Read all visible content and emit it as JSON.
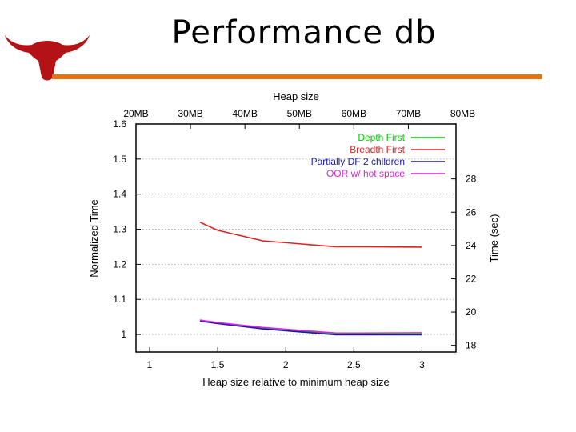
{
  "slide": {
    "title": "Performance db",
    "accent_color": "#e8720c",
    "logo_icon": "longhorn-logo-icon",
    "logo_color": "#b31217"
  },
  "chart_data": {
    "type": "line",
    "xlabel": "Heap size relative to minimum heap size",
    "ylabel": "Normalized Time",
    "y2label": "Time (sec)",
    "x2label": "Heap size",
    "xlim": [
      0.9,
      3.25
    ],
    "ylim": [
      0.95,
      1.6
    ],
    "y2lim": [
      17.6,
      31.3
    ],
    "xticks": [
      1,
      1.5,
      2,
      2.5,
      3
    ],
    "xtick_labels": [
      "1",
      "1.5",
      "2",
      "2.5",
      "3"
    ],
    "yticks": [
      1,
      1.1,
      1.2,
      1.3,
      1.4,
      1.5,
      1.6
    ],
    "ytick_labels": [
      "1",
      "1.1",
      "1.2",
      "1.3",
      "1.4",
      "1.5",
      "1.6"
    ],
    "y2ticks": [
      18,
      20,
      22,
      24,
      26,
      28
    ],
    "y2tick_labels": [
      "18",
      "20",
      "22",
      "24",
      "26",
      "28"
    ],
    "x2ticks": [
      0.9,
      1.3,
      1.7,
      2.1,
      2.5,
      2.9,
      3.3
    ],
    "x2tick_labels": [
      "20MB",
      "30MB",
      "40MB",
      "50MB",
      "60MB",
      "70MB",
      "80MB"
    ],
    "grid": true,
    "legend_position": "top-right",
    "series": [
      {
        "name": "Depth First",
        "color": "#00cc00",
        "x": [
          1.37,
          1.5,
          1.83,
          2.37,
          2.55,
          3.0
        ],
        "y": [
          1.04,
          1.033,
          1.018,
          1.001,
          1.001,
          1.001
        ]
      },
      {
        "name": "Breadth First",
        "color": "#dd2222",
        "x": [
          1.37,
          1.5,
          1.83,
          2.37,
          2.55,
          3.0
        ],
        "y": [
          1.32,
          1.297,
          1.267,
          1.25,
          1.25,
          1.249
        ]
      },
      {
        "name": "Partially DF 2 children",
        "color": "#1a1aa6",
        "x": [
          1.37,
          1.5,
          1.83,
          2.37,
          2.55,
          3.0
        ],
        "y": [
          1.038,
          1.031,
          1.016,
          0.999,
          0.999,
          0.999
        ]
      },
      {
        "name": "OOR w/ hot space",
        "color": "#e020e0",
        "x": [
          1.37,
          1.5,
          1.83,
          2.37,
          2.55,
          3.0
        ],
        "y": [
          1.041,
          1.034,
          1.02,
          1.004,
          1.004,
          1.005
        ]
      }
    ]
  }
}
